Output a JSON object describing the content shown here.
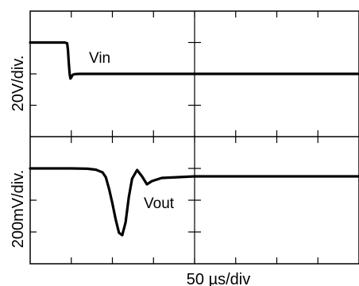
{
  "chart_data": {
    "type": "line",
    "xlabel": "50 µs/div",
    "x_divisions": 8,
    "xlim": [
      0,
      400
    ],
    "x_unit": "µs",
    "grid": true,
    "panels": [
      {
        "name": "Vin",
        "ylabel": "20V/div.",
        "y_divisions": 4,
        "ylim": [
          -80,
          0
        ],
        "series": [
          {
            "name": "Vin",
            "x": [
              0,
              20,
              42,
              45,
              46,
              47,
              48,
              49,
              50,
              51,
              52,
              54,
              56,
              60,
              80,
              150,
              250,
              400
            ],
            "y": [
              -20,
              -20,
              -20,
              -20.5,
              -25,
              -33,
              -40,
              -43,
              -42.2,
              -41.2,
              -40.5,
              -40.2,
              -40.1,
              -40,
              -40,
              -40,
              -40,
              -40
            ]
          }
        ]
      },
      {
        "name": "Vout",
        "ylabel": "200mV/div.",
        "y_divisions": 4,
        "ylim": [
          -800,
          0
        ],
        "series": [
          {
            "name": "Vout",
            "x": [
              0,
              50,
              70,
              80,
              88,
              92,
              96,
              100,
              104,
              108,
              112,
              116,
              120,
              124,
              130,
              136,
              142,
              148,
              160,
              200,
              250,
              400
            ],
            "y": [
              -200,
              -200,
              -202,
              -208,
              -225,
              -255,
              -330,
              -420,
              -520,
              -605,
              -620,
              -540,
              -380,
              -265,
              -210,
              -250,
              -300,
              -280,
              -260,
              -250,
              -250,
              -250
            ]
          }
        ]
      }
    ]
  }
}
